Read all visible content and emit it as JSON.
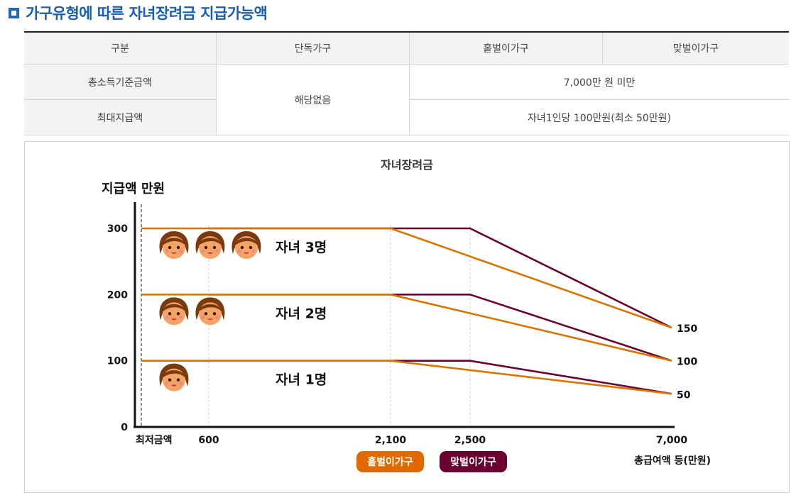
{
  "heading": {
    "title": "가구유형에 따른 자녀장려금 지급가능액"
  },
  "table": {
    "headers": [
      "구분",
      "단독가구",
      "홑벌이가구",
      "맞벌이가구"
    ],
    "rows": [
      {
        "label": "총소득기준금액",
        "shared": "해당없음",
        "value": "7,000만 원 미만"
      },
      {
        "label": "최대지급액",
        "value": "자녀1인당 100만원(최소 50만원)"
      }
    ]
  },
  "chart_data": {
    "type": "line",
    "title": "자녀장려금",
    "ylabel": "지급액 만원",
    "xlabel": "총급여액 등(만원)",
    "ylim": [
      0,
      330
    ],
    "xlim": [
      0,
      7000
    ],
    "x_tick_labels": [
      {
        "x": 0,
        "label": "최저금액"
      },
      {
        "x": 600,
        "label": "600"
      },
      {
        "x": 2100,
        "label": "2,100"
      },
      {
        "x": 2500,
        "label": "2,500"
      },
      {
        "x": 7000,
        "label": "7,000"
      }
    ],
    "y_ticks": [
      0,
      100,
      200,
      300
    ],
    "right_labels": [
      150,
      100,
      50
    ],
    "series": [
      {
        "name": "홑벌이가구",
        "color": "#d87400",
        "children": 1,
        "points": [
          [
            0,
            100
          ],
          [
            2100,
            100
          ],
          [
            7000,
            50
          ]
        ]
      },
      {
        "name": "홑벌이가구",
        "color": "#d87400",
        "children": 2,
        "points": [
          [
            0,
            200
          ],
          [
            2100,
            200
          ],
          [
            7000,
            100
          ]
        ]
      },
      {
        "name": "홑벌이가구",
        "color": "#d87400",
        "children": 3,
        "points": [
          [
            0,
            300
          ],
          [
            2100,
            300
          ],
          [
            7000,
            150
          ]
        ]
      },
      {
        "name": "맞벌이가구",
        "color": "#6b0030",
        "children": 1,
        "points": [
          [
            600,
            100
          ],
          [
            2500,
            100
          ],
          [
            7000,
            50
          ]
        ]
      },
      {
        "name": "맞벌이가구",
        "color": "#6b0030",
        "children": 2,
        "points": [
          [
            600,
            200
          ],
          [
            2500,
            200
          ],
          [
            7000,
            100
          ]
        ]
      },
      {
        "name": "맞벌이가구",
        "color": "#6b0030",
        "children": 3,
        "points": [
          [
            600,
            300
          ],
          [
            2500,
            300
          ],
          [
            7000,
            150
          ]
        ]
      }
    ],
    "group_labels": [
      {
        "y": 100,
        "label": "자녀 1명",
        "faces": 1
      },
      {
        "y": 200,
        "label": "자녀 2명",
        "faces": 2
      },
      {
        "y": 300,
        "label": "자녀 3명",
        "faces": 3
      }
    ],
    "legend": [
      {
        "label": "홑벌이가구",
        "color": "#e06a00"
      },
      {
        "label": "맞벌이가구",
        "color": "#6b0030"
      }
    ]
  }
}
